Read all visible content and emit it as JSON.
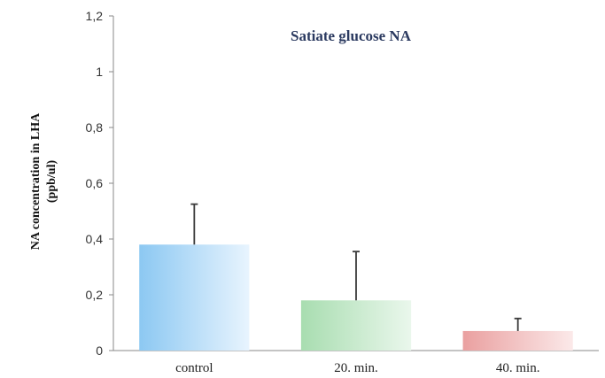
{
  "chart_data": {
    "type": "bar",
    "title": "Satiate glucose NA",
    "ylabel_line1": "NA concentration in LHA",
    "ylabel_line2": "(ppb/ul)",
    "xlabel": "",
    "categories": [
      "control",
      "20. min.",
      "40. min."
    ],
    "values": [
      0.38,
      0.18,
      0.07
    ],
    "error_upper": [
      0.145,
      0.175,
      0.045
    ],
    "ylim": [
      0,
      1.2
    ],
    "yticks": [
      0,
      0.2,
      0.4,
      0.6,
      0.8,
      1,
      1.2
    ],
    "ytick_labels": [
      "0",
      "0,2",
      "0,4",
      "0,6",
      "0,8",
      "1",
      "1,2"
    ],
    "bar_colors": [
      {
        "dark": "#8cc8f2",
        "light": "#e8f4fe"
      },
      {
        "dark": "#a8ddb0",
        "light": "#eaf7ec"
      },
      {
        "dark": "#eaa0a0",
        "light": "#fbe9e9"
      }
    ],
    "grid": false,
    "legend": "none"
  }
}
